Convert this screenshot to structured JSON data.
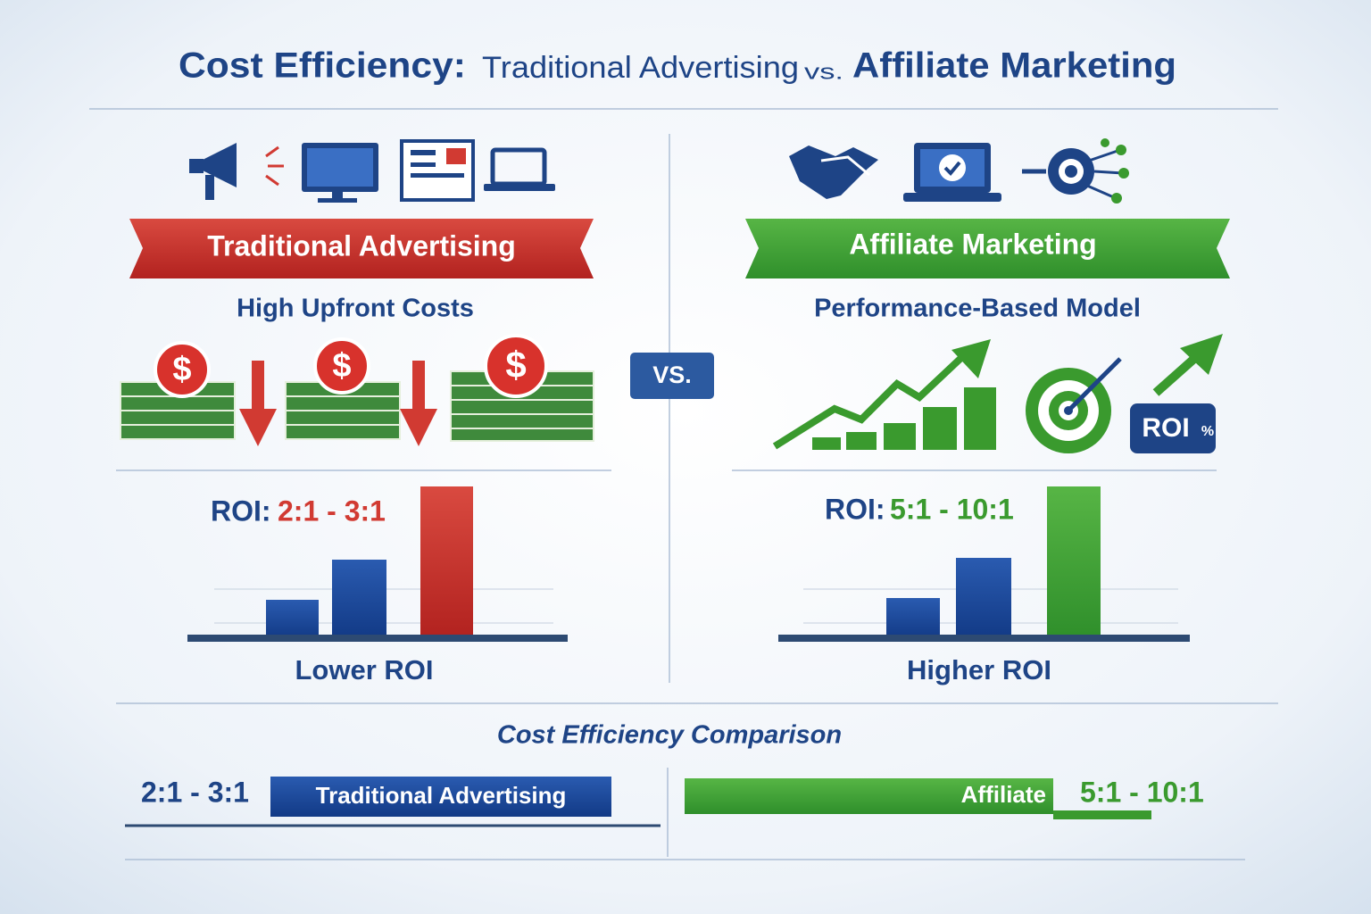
{
  "title": {
    "parts": [
      "Cost Efficiency:",
      "Traditional Advertising",
      "vs.",
      "Affiliate Marketing"
    ]
  },
  "vs": "VS.",
  "left": {
    "banner": "Traditional Advertising",
    "subtitle": "High Upfront Costs",
    "dollar": "$",
    "roi_label": "ROI:",
    "roi_value": "2:1 - 3:1",
    "caption": "Lower ROI"
  },
  "right": {
    "banner": "Affiliate Marketing",
    "subtitle": "Performance-Based Model",
    "badge": "ROI",
    "badge_unit": "%",
    "roi_label": "ROI:",
    "roi_value": "5:1 - 10:1",
    "caption": "Higher ROI"
  },
  "comparison": {
    "title": "Cost Efficiency Comparison",
    "left_value": "2:1 - 3:1",
    "left_bar": "Traditional Advertising",
    "right_bar": "Affiliate",
    "right_value": "5:1 - 10:1"
  }
}
